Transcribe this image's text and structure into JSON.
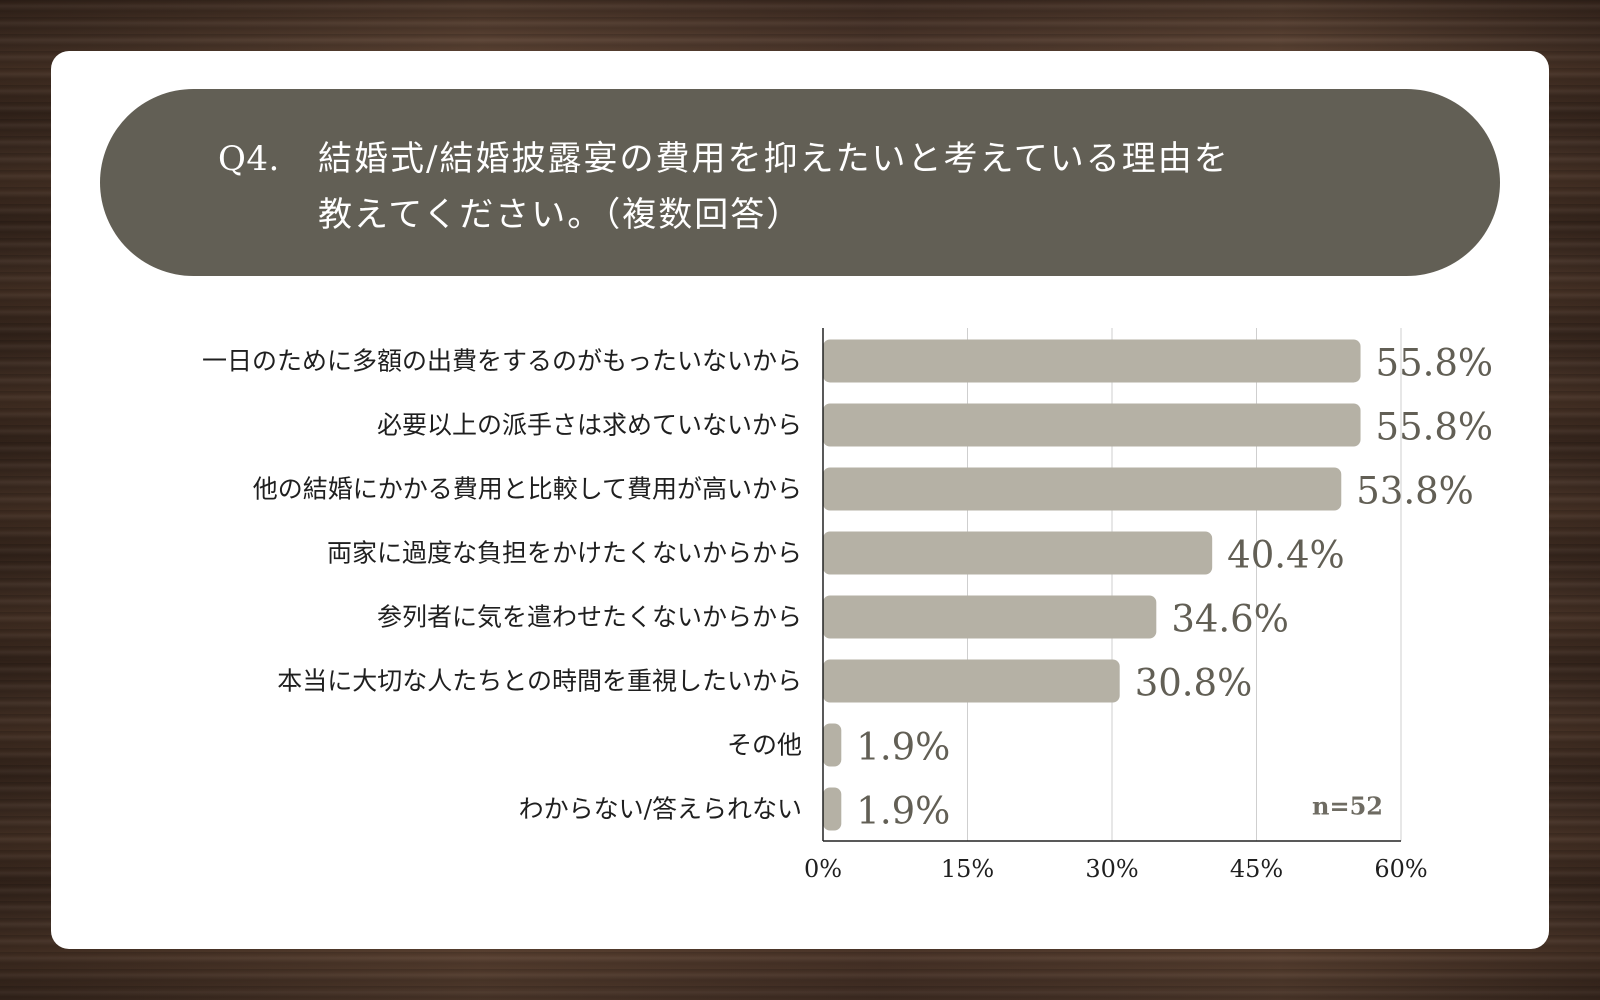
{
  "header": {
    "question_number": "Q4.",
    "question_line1": "結婚式/結婚披露宴の費用を抑えたいと考えている理由を",
    "question_line2": "教えてください。（複数回答）"
  },
  "colors": {
    "header_bg": "#625f55",
    "bar": "#b5b1a5",
    "value_text": "#625f55"
  },
  "chart_data": {
    "type": "bar",
    "orientation": "horizontal",
    "categories": [
      "一日のために多額の出費をするのがもったいないから",
      "必要以上の派手さは求めていないから",
      "他の結婚にかかる費用と比較して費用が高いから",
      "両家に過度な負担をかけたくないからから",
      "参列者に気を遣わせたくないからから",
      "本当に大切な人たちとの時間を重視したいから",
      "その他",
      "わからない/答えられない"
    ],
    "values": [
      55.8,
      55.8,
      53.8,
      40.4,
      34.6,
      30.8,
      1.9,
      1.9
    ],
    "value_labels": [
      "55.8%",
      "55.8%",
      "53.8%",
      "40.4%",
      "34.6%",
      "30.8%",
      "1.9%",
      "1.9%"
    ],
    "xlim": [
      0,
      60
    ],
    "xticks": [
      0,
      15,
      30,
      45,
      60
    ],
    "xtick_labels": [
      "0%",
      "15%",
      "30%",
      "45%",
      "60%"
    ],
    "grid": true,
    "sample_note": "n=52"
  }
}
